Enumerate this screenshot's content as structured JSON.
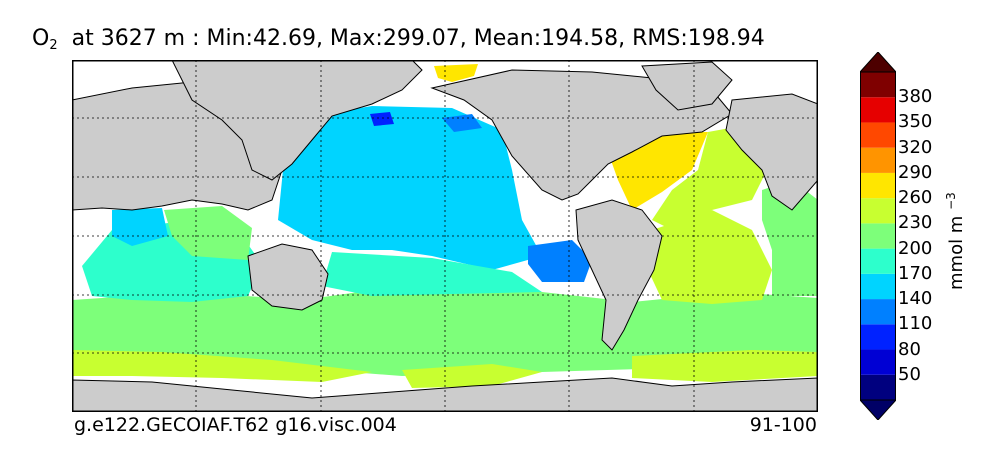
{
  "title": {
    "variable": "O",
    "subscript": "2",
    "rest": "  at 3627 m : Min:42.69, Max:299.07, Mean:194.58, RMS:198.94"
  },
  "footer": {
    "case_name": "g.e122.GECOIAF.T62 g16.visc.004",
    "years": "91-100"
  },
  "colorbar": {
    "unit_base": "mmol m",
    "unit_exp": "−3",
    "ticks": [
      "50",
      "80",
      "110",
      "140",
      "170",
      "200",
      "230",
      "260",
      "290",
      "320",
      "350",
      "380"
    ],
    "colors": [
      "#00007f",
      "#0000d4",
      "#0022ff",
      "#0080ff",
      "#00d4ff",
      "#2dffcc",
      "#7dff7a",
      "#c8ff30",
      "#ffe600",
      "#ff9400",
      "#ff4800",
      "#e60000",
      "#7f0000"
    ],
    "under_color": "#000066",
    "over_color": "#4d0000"
  }
}
